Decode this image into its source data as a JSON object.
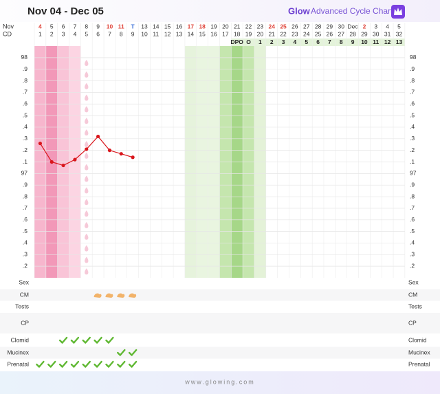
{
  "chart_data": {
    "type": "line",
    "title": "Nov 04 - Dec 05",
    "brand": "Glow",
    "subtitle": "Advanced Cycle Chart",
    "date_label": "Nov",
    "cd_label": "CD",
    "dates": [
      4,
      5,
      6,
      7,
      8,
      9,
      10,
      11,
      "T",
      13,
      14,
      15,
      16,
      17,
      18,
      19,
      20,
      21,
      22,
      23,
      24,
      25,
      26,
      27,
      28,
      29,
      30,
      "Dec",
      2,
      3,
      4,
      5
    ],
    "date_colors": [
      "#e0443a",
      "#333",
      "#333",
      "#333",
      "#333",
      "#333",
      "#e0443a",
      "#e0443a",
      "#3a6fd8",
      "#333",
      "#333",
      "#333",
      "#333",
      "#e0443a",
      "#e0443a",
      "#333",
      "#333",
      "#333",
      "#333",
      "#333",
      "#e0443a",
      "#e0443a",
      "#333",
      "#333",
      "#333",
      "#333",
      "#333",
      "#333",
      "#e0443a",
      "#333",
      "#333",
      "#333"
    ],
    "categories": [
      1,
      2,
      3,
      4,
      5,
      6,
      7,
      8,
      9,
      10,
      11,
      12,
      13,
      14,
      15,
      16,
      17,
      18,
      19,
      20,
      21,
      22,
      23,
      24,
      25,
      26,
      27,
      28,
      29,
      30,
      31,
      32
    ],
    "dpo": [
      null,
      null,
      null,
      null,
      null,
      null,
      null,
      null,
      null,
      null,
      null,
      null,
      null,
      null,
      null,
      null,
      null,
      "DPO",
      "O",
      1,
      2,
      3,
      4,
      5,
      6,
      7,
      8,
      9,
      10,
      11,
      12,
      13
    ],
    "series": [
      {
        "color": "#d9161c",
        "values": [
          97.26,
          97.1,
          97.07,
          97.12,
          97.21,
          97.32,
          97.2,
          97.17,
          97.14,
          null,
          null,
          null,
          null,
          null,
          null,
          null,
          null,
          null,
          null,
          null,
          null,
          null,
          null,
          null,
          null,
          null,
          null,
          null,
          null,
          null,
          null,
          null
        ]
      }
    ],
    "ylim": [
      96.1,
      98.1
    ],
    "yticks": [
      98,
      {
        "value": 97.9,
        "label": ".9"
      },
      {
        "value": 97.8,
        "label": ".8"
      },
      {
        "value": 97.7,
        "label": ".7"
      },
      {
        "value": 97.6,
        "label": ".6"
      },
      {
        "value": 97.5,
        "label": ".5"
      },
      {
        "value": 97.4,
        "label": ".4"
      },
      {
        "value": 97.3,
        "label": ".3"
      },
      {
        "value": 97.2,
        "label": ".2"
      },
      {
        "value": 97.1,
        "label": ".1"
      },
      97,
      {
        "value": 96.9,
        "label": ".9"
      },
      {
        "value": 96.8,
        "label": ".8"
      },
      {
        "value": 96.7,
        "label": ".7"
      },
      {
        "value": 96.6,
        "label": ".6"
      },
      {
        "value": 96.5,
        "label": ".5"
      },
      {
        "value": 96.4,
        "label": ".4"
      },
      {
        "value": 96.3,
        "label": ".3"
      },
      {
        "value": 96.2,
        "label": ".2"
      }
    ],
    "grid": true,
    "rows": [
      {
        "label": "Sex",
        "days": []
      },
      {
        "label": "CM",
        "days": [
          6,
          7,
          8,
          9
        ]
      },
      {
        "label": "Tests",
        "days": []
      },
      {
        "label": "CP",
        "days": []
      },
      {
        "label": "Clomid",
        "days": [
          3,
          4,
          5,
          6,
          7
        ]
      },
      {
        "label": "Mucinex",
        "days": [
          8,
          9
        ]
      },
      {
        "label": "Prenatal",
        "days": [
          1,
          2,
          3,
          4,
          5,
          6,
          7,
          8,
          9
        ]
      }
    ],
    "footer": "www.glowing.com"
  }
}
